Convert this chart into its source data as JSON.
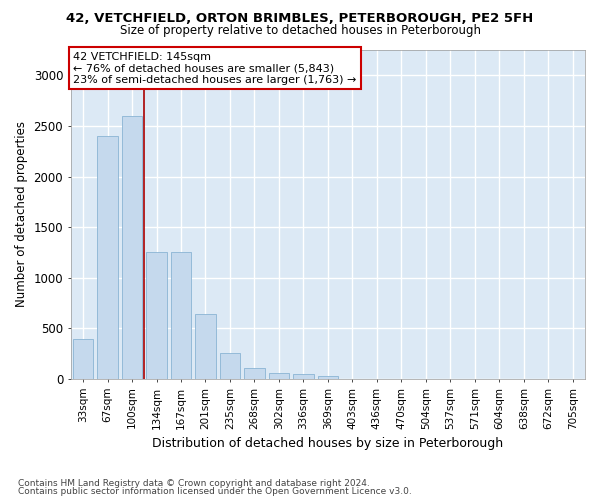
{
  "title1": "42, VETCHFIELD, ORTON BRIMBLES, PETERBOROUGH, PE2 5FH",
  "title2": "Size of property relative to detached houses in Peterborough",
  "xlabel": "Distribution of detached houses by size in Peterborough",
  "ylabel": "Number of detached properties",
  "footnote1": "Contains HM Land Registry data © Crown copyright and database right 2024.",
  "footnote2": "Contains public sector information licensed under the Open Government Licence v3.0.",
  "bar_labels": [
    "33sqm",
    "67sqm",
    "100sqm",
    "134sqm",
    "167sqm",
    "201sqm",
    "235sqm",
    "268sqm",
    "302sqm",
    "336sqm",
    "369sqm",
    "403sqm",
    "436sqm",
    "470sqm",
    "504sqm",
    "537sqm",
    "571sqm",
    "604sqm",
    "638sqm",
    "672sqm",
    "705sqm"
  ],
  "bar_values": [
    390,
    2400,
    2600,
    1250,
    1250,
    640,
    260,
    105,
    55,
    45,
    30,
    0,
    0,
    0,
    0,
    0,
    0,
    0,
    0,
    0,
    0
  ],
  "bar_color": "#c5d9ed",
  "bar_edge_color": "#8ab4d4",
  "vline_color": "#aa0000",
  "vline_x": 2.5,
  "annotation_line1": "42 VETCHFIELD: 145sqm",
  "annotation_line2": "← 76% of detached houses are smaller (5,843)",
  "annotation_line3": "23% of semi-detached houses are larger (1,763) →",
  "ylim_max": 3250,
  "yticks": [
    0,
    500,
    1000,
    1500,
    2000,
    2500,
    3000
  ],
  "plot_bg_color": "#dce9f5"
}
